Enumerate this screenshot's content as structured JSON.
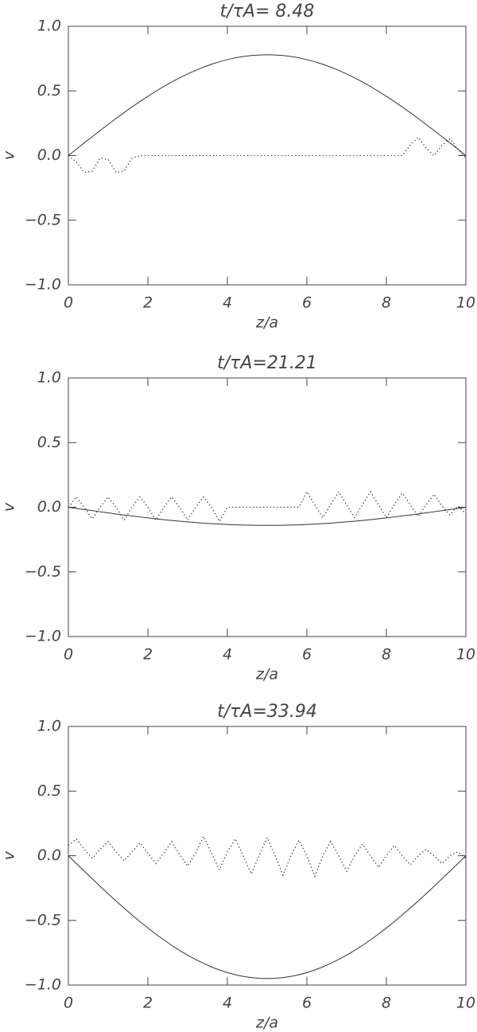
{
  "chart_data": [
    {
      "type": "line",
      "title": "t/τA= 8.48",
      "xlabel": "z/a",
      "ylabel": "v",
      "xlim": [
        0,
        10
      ],
      "ylim": [
        -1,
        1
      ],
      "xticks": [
        0,
        2,
        4,
        6,
        8,
        10
      ],
      "yticks": [
        {
          "value": -1,
          "label": "−1.0"
        },
        {
          "value": -0.5,
          "label": "−0.5"
        },
        {
          "value": 0,
          "label": "0.0"
        },
        {
          "value": 0.5,
          "label": "0.5"
        },
        {
          "value": 1,
          "label": "1.0"
        }
      ],
      "grid": false,
      "x": [
        0,
        0.2,
        0.4,
        0.6,
        0.8,
        1,
        1.2,
        1.4,
        1.6,
        1.8,
        2,
        2.2,
        2.4,
        2.6,
        2.8,
        3,
        3.2,
        3.4,
        3.6,
        3.8,
        4,
        4.2,
        4.4,
        4.6,
        4.8,
        5,
        5.2,
        5.4,
        5.6,
        5.8,
        6,
        6.2,
        6.4,
        6.6,
        6.8,
        7,
        7.2,
        7.4,
        7.6,
        7.8,
        8,
        8.2,
        8.4,
        8.6,
        8.8,
        9,
        9.2,
        9.4,
        9.6,
        9.8,
        10
      ],
      "series": [
        {
          "color": "#333333",
          "style": "solid",
          "values": [
            0,
            0.049,
            0.098,
            0.146,
            0.194,
            0.241,
            0.287,
            0.332,
            0.376,
            0.418,
            0.458,
            0.497,
            0.534,
            0.569,
            0.601,
            0.631,
            0.659,
            0.684,
            0.706,
            0.725,
            0.742,
            0.756,
            0.766,
            0.774,
            0.778,
            0.78,
            0.778,
            0.774,
            0.766,
            0.756,
            0.742,
            0.725,
            0.706,
            0.684,
            0.659,
            0.631,
            0.601,
            0.569,
            0.534,
            0.497,
            0.458,
            0.418,
            0.376,
            0.332,
            0.287,
            0.241,
            0.194,
            0.146,
            0.098,
            0.049,
            0
          ]
        },
        {
          "color": "#333333",
          "style": "dotted",
          "values": [
            0,
            -0.05,
            -0.13,
            -0.12,
            -0.02,
            -0.03,
            -0.13,
            -0.12,
            -0.02,
            0,
            0,
            0,
            0,
            0,
            0,
            0,
            0,
            0,
            0,
            0,
            0,
            0,
            0,
            0,
            0,
            0,
            0,
            0,
            0,
            0,
            0,
            0,
            0,
            0,
            0,
            0,
            0,
            0,
            0,
            0,
            0,
            0,
            0,
            0.08,
            0.14,
            0.06,
            0,
            0.08,
            0.13,
            0.05,
            -0.02
          ]
        }
      ]
    },
    {
      "type": "line",
      "title": "t/τA=21.21",
      "xlabel": "z/a",
      "ylabel": "v",
      "xlim": [
        0,
        10
      ],
      "ylim": [
        -1,
        1
      ],
      "xticks": [
        0,
        2,
        4,
        6,
        8,
        10
      ],
      "yticks": [
        {
          "value": -1,
          "label": "−1.0"
        },
        {
          "value": -0.5,
          "label": "−0.5"
        },
        {
          "value": 0,
          "label": "0.0"
        },
        {
          "value": 0.5,
          "label": "0.5"
        },
        {
          "value": 1,
          "label": "1.0"
        }
      ],
      "grid": false,
      "x": [
        0,
        0.2,
        0.4,
        0.6,
        0.8,
        1,
        1.2,
        1.4,
        1.6,
        1.8,
        2,
        2.2,
        2.4,
        2.6,
        2.8,
        3,
        3.2,
        3.4,
        3.6,
        3.8,
        4,
        4.2,
        4.4,
        4.6,
        4.8,
        5,
        5.2,
        5.4,
        5.6,
        5.8,
        6,
        6.2,
        6.4,
        6.6,
        6.8,
        7,
        7.2,
        7.4,
        7.6,
        7.8,
        8,
        8.2,
        8.4,
        8.6,
        8.8,
        9,
        9.2,
        9.4,
        9.6,
        9.8,
        10
      ],
      "series": [
        {
          "color": "#333333",
          "style": "solid",
          "values": [
            0,
            -0.009,
            -0.018,
            -0.026,
            -0.035,
            -0.043,
            -0.052,
            -0.06,
            -0.067,
            -0.075,
            -0.082,
            -0.089,
            -0.096,
            -0.102,
            -0.108,
            -0.113,
            -0.118,
            -0.123,
            -0.127,
            -0.13,
            -0.133,
            -0.136,
            -0.138,
            -0.139,
            -0.14,
            -0.14,
            -0.14,
            -0.139,
            -0.138,
            -0.136,
            -0.133,
            -0.13,
            -0.127,
            -0.123,
            -0.118,
            -0.113,
            -0.108,
            -0.102,
            -0.096,
            -0.089,
            -0.082,
            -0.075,
            -0.067,
            -0.06,
            -0.052,
            -0.043,
            -0.035,
            -0.026,
            -0.018,
            -0.009,
            0
          ]
        },
        {
          "color": "#333333",
          "style": "dotted",
          "values": [
            0,
            0.08,
            0,
            -0.09,
            0,
            0.08,
            0,
            -0.1,
            0,
            0.08,
            0,
            -0.1,
            0,
            0.08,
            0,
            -0.1,
            0,
            0.08,
            0,
            -0.11,
            0,
            0,
            0,
            0,
            0,
            0,
            0,
            0,
            0,
            0,
            0.12,
            0.02,
            -0.08,
            0.02,
            0.12,
            0.02,
            -0.08,
            0.02,
            0.12,
            0.02,
            -0.08,
            0.02,
            0.11,
            0.02,
            -0.07,
            0.02,
            0.1,
            0.01,
            -0.06,
            0.01,
            -0.05
          ]
        }
      ]
    },
    {
      "type": "line",
      "title": "t/τA=33.94",
      "xlabel": "z/a",
      "ylabel": "v",
      "xlim": [
        0,
        10
      ],
      "ylim": [
        -1,
        1
      ],
      "xticks": [
        0,
        2,
        4,
        6,
        8,
        10
      ],
      "yticks": [
        {
          "value": -1,
          "label": "−1.0"
        },
        {
          "value": -0.5,
          "label": "−0.5"
        },
        {
          "value": 0,
          "label": "0.0"
        },
        {
          "value": 0.5,
          "label": "0.5"
        },
        {
          "value": 1,
          "label": "1.0"
        }
      ],
      "grid": false,
      "x": [
        0,
        0.2,
        0.4,
        0.6,
        0.8,
        1,
        1.2,
        1.4,
        1.6,
        1.8,
        2,
        2.2,
        2.4,
        2.6,
        2.8,
        3,
        3.2,
        3.4,
        3.6,
        3.8,
        4,
        4.2,
        4.4,
        4.6,
        4.8,
        5,
        5.2,
        5.4,
        5.6,
        5.8,
        6,
        6.2,
        6.4,
        6.6,
        6.8,
        7,
        7.2,
        7.4,
        7.6,
        7.8,
        8,
        8.2,
        8.4,
        8.6,
        8.8,
        9,
        9.2,
        9.4,
        9.6,
        9.8,
        10
      ],
      "series": [
        {
          "color": "#333333",
          "style": "solid",
          "values": [
            0,
            -0.06,
            -0.119,
            -0.178,
            -0.236,
            -0.294,
            -0.35,
            -0.405,
            -0.458,
            -0.509,
            -0.558,
            -0.606,
            -0.65,
            -0.693,
            -0.732,
            -0.769,
            -0.802,
            -0.832,
            -0.86,
            -0.883,
            -0.904,
            -0.92,
            -0.933,
            -0.942,
            -0.948,
            -0.95,
            -0.948,
            -0.942,
            -0.933,
            -0.92,
            -0.904,
            -0.883,
            -0.86,
            -0.832,
            -0.802,
            -0.769,
            -0.732,
            -0.693,
            -0.65,
            -0.606,
            -0.558,
            -0.509,
            -0.458,
            -0.405,
            -0.35,
            -0.294,
            -0.236,
            -0.178,
            -0.119,
            -0.06,
            0
          ]
        },
        {
          "color": "#333333",
          "style": "dotted",
          "values": [
            0.08,
            0.13,
            0.05,
            -0.02,
            0.05,
            0.11,
            0.03,
            -0.04,
            0.03,
            0.1,
            0.02,
            -0.06,
            0.02,
            0.11,
            0.01,
            -0.08,
            0.02,
            0.15,
            0.02,
            -0.11,
            0.03,
            0.13,
            0,
            -0.14,
            0,
            0.14,
            0,
            -0.15,
            0,
            0.12,
            0,
            -0.16,
            0,
            0.11,
            0,
            -0.12,
            0,
            0.09,
            0,
            -0.09,
            0,
            0.08,
            0,
            -0.07,
            0,
            0.05,
            0,
            -0.06,
            0,
            0.03,
            -0.02
          ]
        }
      ]
    }
  ]
}
